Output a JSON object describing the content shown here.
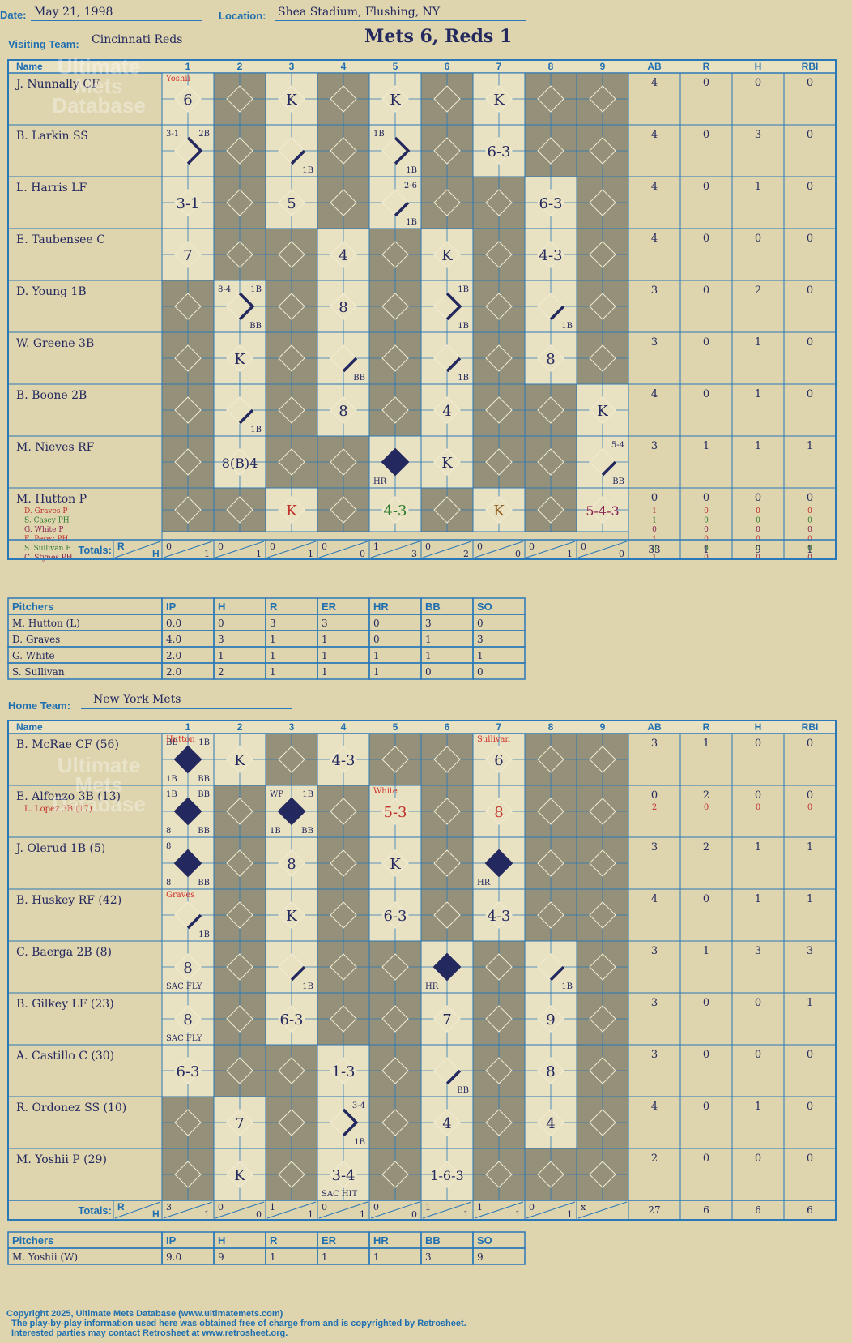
{
  "header": {
    "date_label": "Date:",
    "date": "May 21, 1998",
    "location_label": "Location:",
    "location": "Shea Stadium, Flushing, NY",
    "visiting_label": "Visiting Team:",
    "visiting_team": "Cincinnati Reds",
    "home_label": "Home Team:",
    "home_team": "New York Mets",
    "title": "Mets 6, Reds 1"
  },
  "watermark": {
    "text": "Ultimate Mets Database",
    "url": "ultimatemets.com"
  },
  "columns": {
    "name": "Name",
    "innings": [
      "1",
      "2",
      "3",
      "4",
      "5",
      "6",
      "7",
      "8",
      "9"
    ],
    "stats": [
      "AB",
      "R",
      "H",
      "RBI"
    ]
  },
  "totals_label": "Totals:",
  "r_label": "R",
  "h_label": "H",
  "visitors": {
    "rows": [
      {
        "name": "J. Nunnally CF",
        "stats": [
          "4",
          "0",
          "0",
          "0"
        ],
        "cells": [
          {
            "t": "6",
            "c": "Yoshii"
          },
          {},
          {
            "t": "K"
          },
          {},
          {
            "t": "K"
          },
          {},
          {
            "t": "K"
          },
          {},
          {}
        ]
      },
      {
        "name": "B. Larkin SS",
        "stats": [
          "4",
          "0",
          "3",
          "0"
        ],
        "cells": [
          {
            "b": 2,
            "tl": "3-1",
            "tr": "2B"
          },
          {},
          {
            "b": 1,
            "br": "1B"
          },
          {},
          {
            "b": 2,
            "tl": "1B",
            "br": "1B"
          },
          {},
          {
            "t": "6-3"
          },
          {},
          {}
        ]
      },
      {
        "name": "L. Harris LF",
        "stats": [
          "4",
          "0",
          "1",
          "0"
        ],
        "cells": [
          {
            "t": "3-1"
          },
          {},
          {
            "t": "5"
          },
          {},
          {
            "b": 1,
            "tr": "2-6",
            "br": "1B"
          },
          {},
          {},
          {
            "t": "6-3"
          },
          {}
        ]
      },
      {
        "name": "E. Taubensee C",
        "stats": [
          "4",
          "0",
          "0",
          "0"
        ],
        "cells": [
          {
            "t": "7"
          },
          {},
          {},
          {
            "t": "4"
          },
          {},
          {
            "t": "K"
          },
          {},
          {
            "t": "4-3"
          },
          {}
        ]
      },
      {
        "name": "D. Young 1B",
        "stats": [
          "3",
          "0",
          "2",
          "0"
        ],
        "cells": [
          {},
          {
            "b": 2,
            "tl": "8-4",
            "tr": "1B",
            "br": "BB"
          },
          {},
          {
            "t": "8"
          },
          {},
          {
            "b": 2,
            "tr": "1B",
            "br": "1B"
          },
          {},
          {
            "b": 1,
            "br": "1B"
          },
          {}
        ]
      },
      {
        "name": "W. Greene 3B",
        "stats": [
          "3",
          "0",
          "1",
          "0"
        ],
        "cells": [
          {},
          {
            "t": "K"
          },
          {},
          {
            "b": 1,
            "br": "BB"
          },
          {},
          {
            "b": 1,
            "br": "1B"
          },
          {},
          {
            "t": "8"
          },
          {}
        ]
      },
      {
        "name": "B. Boone 2B",
        "stats": [
          "4",
          "0",
          "1",
          "0"
        ],
        "cells": [
          {},
          {
            "b": 1,
            "br": "1B"
          },
          {},
          {
            "t": "8"
          },
          {},
          {
            "t": "4"
          },
          {},
          {},
          {
            "t": "K"
          }
        ]
      },
      {
        "name": "M. Nieves RF",
        "stats": [
          "3",
          "1",
          "1",
          "1"
        ],
        "cells": [
          {},
          {
            "t": "8(B)4"
          },
          {},
          {},
          {
            "b": 4,
            "bl": "HR"
          },
          {
            "t": "K"
          },
          {},
          {},
          {
            "b": 1,
            "tr": "5-4",
            "br": "BB"
          }
        ]
      },
      {
        "name": "M. Hutton P",
        "stats": [
          "0",
          "0",
          "0",
          "0"
        ],
        "cells": [
          {},
          {},
          {
            "t": "K",
            "col": "#c0302a"
          },
          {},
          {
            "t": "4-3",
            "col": "#2a7a2a"
          },
          {},
          {
            "t": "K",
            "col": "#8a5a1a"
          },
          {},
          {
            "t": "5-4-3",
            "col": "#8a2050"
          }
        ],
        "subs": [
          {
            "name": "D. Graves P",
            "col": "#c0302a",
            "stats": [
              "1",
              "0",
              "0",
              "0"
            ]
          },
          {
            "name": "S. Casey PH",
            "col": "#2a7a2a",
            "stats": [
              "1",
              "0",
              "0",
              "0"
            ]
          },
          {
            "name": "G. White P",
            "col": "#8a2050",
            "stats": [
              "0",
              "0",
              "0",
              "0"
            ]
          },
          {
            "name": "E. Perez PH",
            "col": "#c0302a",
            "stats": [
              "1",
              "0",
              "0",
              "0"
            ]
          },
          {
            "name": "S. Sullivan P",
            "col": "#2a7a2a",
            "stats": [
              "0",
              "0",
              "0",
              "0"
            ]
          },
          {
            "name": "C. Stynes PH",
            "col": "#8a2050",
            "stats": [
              "1",
              "0",
              "0",
              "0"
            ]
          }
        ]
      }
    ],
    "totals": [
      [
        "0",
        "1"
      ],
      [
        "0",
        "1"
      ],
      [
        "0",
        "1"
      ],
      [
        "0",
        "0"
      ],
      [
        "1",
        "3"
      ],
      [
        "0",
        "2"
      ],
      [
        "0",
        "0"
      ],
      [
        "0",
        "1"
      ],
      [
        "0",
        "0"
      ]
    ],
    "totals_stats": [
      "33",
      "1",
      "9",
      "1"
    ]
  },
  "visitor_pitchers": {
    "header": [
      "Pitchers",
      "IP",
      "H",
      "R",
      "ER",
      "HR",
      "BB",
      "SO"
    ],
    "rows": [
      [
        "M. Hutton (L)",
        "0.0",
        "0",
        "3",
        "3",
        "0",
        "3",
        "0"
      ],
      [
        "D. Graves",
        "4.0",
        "3",
        "1",
        "1",
        "0",
        "1",
        "3"
      ],
      [
        "G. White",
        "2.0",
        "1",
        "1",
        "1",
        "1",
        "1",
        "1"
      ],
      [
        "S. Sullivan",
        "2.0",
        "2",
        "1",
        "1",
        "1",
        "0",
        "0"
      ]
    ]
  },
  "home": {
    "rows": [
      {
        "name": "B. McRae CF (56)",
        "stats": [
          "3",
          "1",
          "0",
          "0"
        ],
        "cells": [
          {
            "b": 4,
            "tl": "BB",
            "tr": "1B",
            "bl": "1B",
            "br": "BB",
            "c": "Hutton"
          },
          {
            "t": "K"
          },
          {},
          {
            "t": "4-3"
          },
          {},
          {},
          {
            "t": "6",
            "c": "Sullivan"
          },
          {},
          {}
        ]
      },
      {
        "name": "E. Alfonzo 3B (13)",
        "sub": "L. Lopez 3B (17)",
        "stats": [
          "0",
          "2",
          "0",
          "0"
        ],
        "substats": [
          "2",
          "0",
          "0",
          "0"
        ],
        "cells": [
          {
            "b": 4,
            "tl": "1B",
            "tr": "BB",
            "bl": "8",
            "br": "BB"
          },
          {},
          {
            "b": 4,
            "tl": "WP",
            "tr": "1B",
            "bl": "1B",
            "br": "BB"
          },
          {},
          {
            "t": "5-3",
            "col": "#c0302a",
            "c": "White"
          },
          {},
          {
            "t": "8",
            "col": "#c0302a"
          },
          {},
          {}
        ]
      },
      {
        "name": "J. Olerud 1B (5)",
        "stats": [
          "3",
          "2",
          "1",
          "1"
        ],
        "cells": [
          {
            "b": 4,
            "tl": "8",
            "bl": "8",
            "br": "BB"
          },
          {},
          {
            "t": "8"
          },
          {},
          {
            "t": "K"
          },
          {},
          {
            "b": 4,
            "bl": "HR"
          },
          {},
          {}
        ]
      },
      {
        "name": "B. Huskey RF (42)",
        "stats": [
          "4",
          "0",
          "1",
          "1"
        ],
        "cells": [
          {
            "b": 1,
            "br": "1B",
            "c": "Graves"
          },
          {},
          {
            "t": "K"
          },
          {},
          {
            "t": "6-3"
          },
          {},
          {
            "t": "4-3"
          },
          {},
          {}
        ]
      },
      {
        "name": "C. Baerga 2B (8)",
        "stats": [
          "3",
          "1",
          "3",
          "3"
        ],
        "cells": [
          {
            "t": "8",
            "bl": "SAC FLY"
          },
          {},
          {
            "b": 1,
            "br": "1B"
          },
          {},
          {},
          {
            "b": 4,
            "bl": "HR"
          },
          {},
          {
            "b": 1,
            "br": "1B"
          },
          {}
        ]
      },
      {
        "name": "B. Gilkey LF (23)",
        "stats": [
          "3",
          "0",
          "0",
          "1"
        ],
        "cells": [
          {
            "t": "8",
            "bl": "SAC FLY"
          },
          {},
          {
            "t": "6-3"
          },
          {},
          {},
          {
            "t": "7"
          },
          {},
          {
            "t": "9"
          },
          {}
        ]
      },
      {
        "name": "A. Castillo C (30)",
        "stats": [
          "3",
          "0",
          "0",
          "0"
        ],
        "cells": [
          {
            "t": "6-3"
          },
          {},
          {},
          {
            "t": "1-3"
          },
          {},
          {
            "b": 1,
            "br": "BB"
          },
          {},
          {
            "t": "8"
          },
          {}
        ]
      },
      {
        "name": "R. Ordonez SS (10)",
        "stats": [
          "4",
          "0",
          "1",
          "0"
        ],
        "cells": [
          {},
          {
            "t": "7"
          },
          {},
          {
            "b": 2,
            "tr": "3-4",
            "br": "1B"
          },
          {},
          {
            "t": "4"
          },
          {},
          {
            "t": "4"
          },
          {}
        ]
      },
      {
        "name": "M. Yoshii P (29)",
        "stats": [
          "2",
          "0",
          "0",
          "0"
        ],
        "cells": [
          {},
          {
            "t": "K"
          },
          {},
          {
            "t": "3-4",
            "bl": "SAC HIT"
          },
          {},
          {
            "t": "1-6-3"
          },
          {},
          {},
          {}
        ]
      }
    ],
    "totals": [
      [
        "3",
        "1"
      ],
      [
        "0",
        "0"
      ],
      [
        "1",
        "1"
      ],
      [
        "0",
        "1"
      ],
      [
        "0",
        "0"
      ],
      [
        "1",
        "1"
      ],
      [
        "1",
        "1"
      ],
      [
        "0",
        "1"
      ],
      [
        "x",
        ""
      ]
    ],
    "totals_stats": [
      "27",
      "6",
      "6",
      "6"
    ]
  },
  "home_pitchers": {
    "header": [
      "Pitchers",
      "IP",
      "H",
      "R",
      "ER",
      "HR",
      "BB",
      "SO"
    ],
    "rows": [
      [
        "M. Yoshii (W)",
        "9.0",
        "9",
        "1",
        "1",
        "1",
        "3",
        "9"
      ]
    ]
  },
  "footer": [
    "Copyright 2025, Ultimate Mets Database (www.ultimatemets.com)",
    "The play-by-play information used here was obtained free of charge from and is copyrighted by Retrosheet.",
    "Interested parties may contact Retrosheet at www.retrosheet.org."
  ]
}
